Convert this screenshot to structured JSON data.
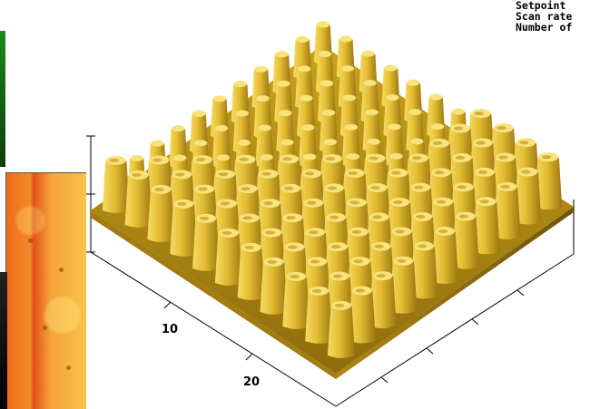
{
  "scan_parameters": {
    "setpoint_label": "Setpoint",
    "scan_rate_label": "Scan rate",
    "number_of_label": "Number of"
  },
  "axis": {
    "tick_10": "10",
    "tick_20": "20"
  },
  "colors": {
    "pillar_light": "#f2d050",
    "pillar_mid": "#c8a21a",
    "pillar_dark": "#8a6a0c",
    "base": "#b8900f",
    "optical_orange": "#f08020"
  }
}
